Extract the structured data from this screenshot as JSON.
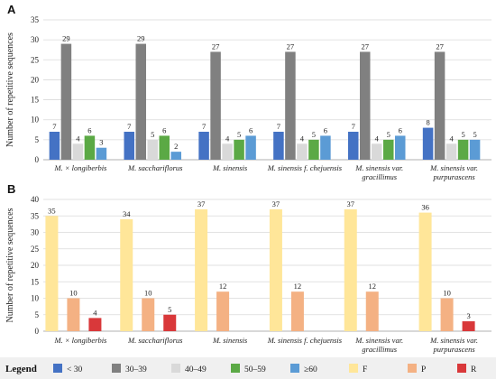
{
  "chart_data": [
    {
      "panel_label": "A",
      "type": "bar",
      "ylabel": "Number of repetitive sequences",
      "ylim": [
        0,
        35
      ],
      "yticks": [
        0,
        5,
        10,
        15,
        20,
        25,
        30,
        35
      ],
      "grid": true,
      "categories": [
        [
          "M. × longiberbis"
        ],
        [
          "M. sacchariflorus"
        ],
        [
          "M. sinensis"
        ],
        [
          "M. sinensis f. chejuensis"
        ],
        [
          "M. sinensis var.",
          "gracillimus"
        ],
        [
          "M. sinensis var.",
          "purpurascens"
        ]
      ],
      "series": [
        {
          "name": "< 30",
          "color": "#4472C4",
          "values": [
            7,
            7,
            7,
            7,
            7,
            8
          ]
        },
        {
          "name": "30–39",
          "color": "#808080",
          "values": [
            29,
            29,
            27,
            27,
            27,
            27
          ]
        },
        {
          "name": "40–49",
          "color": "#D9D9D9",
          "values": [
            4,
            5,
            4,
            4,
            4,
            4
          ]
        },
        {
          "name": "50–59",
          "color": "#5BA945",
          "values": [
            6,
            6,
            5,
            5,
            5,
            5
          ]
        },
        {
          "name": "≥60",
          "color": "#5B9BD5",
          "values": [
            3,
            2,
            6,
            6,
            6,
            5
          ]
        }
      ]
    },
    {
      "panel_label": "B",
      "type": "bar",
      "ylabel": "Number of repetitive sequences",
      "ylim": [
        0,
        40
      ],
      "yticks": [
        0,
        5,
        10,
        15,
        20,
        25,
        30,
        35,
        40
      ],
      "grid": true,
      "categories": [
        [
          "M. × longiberbis"
        ],
        [
          "M. sacchariflorus"
        ],
        [
          "M. sinensis"
        ],
        [
          "M. sinensis f. chejuensis"
        ],
        [
          "M. sinensis var.",
          "gracillimus"
        ],
        [
          "M. sinensis var.",
          "purpurascens"
        ]
      ],
      "series": [
        {
          "name": "F",
          "color": "#FFE699",
          "values": [
            35,
            34,
            37,
            37,
            37,
            36
          ]
        },
        {
          "name": "P",
          "color": "#F4B183",
          "values": [
            10,
            10,
            12,
            12,
            12,
            10
          ]
        },
        {
          "name": "R",
          "color": "#D9383A",
          "values": [
            4,
            5,
            null,
            null,
            null,
            3
          ]
        }
      ]
    }
  ],
  "legend": {
    "title": "Legend",
    "items": [
      {
        "name": "< 30",
        "color": "#4472C4"
      },
      {
        "name": "30–39",
        "color": "#808080"
      },
      {
        "name": "40–49",
        "color": "#D9D9D9"
      },
      {
        "name": "50–59",
        "color": "#5BA945"
      },
      {
        "name": "≥60",
        "color": "#5B9BD5"
      },
      {
        "name": "F",
        "color": "#FFE699"
      },
      {
        "name": "P",
        "color": "#F4B183"
      },
      {
        "name": "R",
        "color": "#D9383A"
      }
    ]
  }
}
